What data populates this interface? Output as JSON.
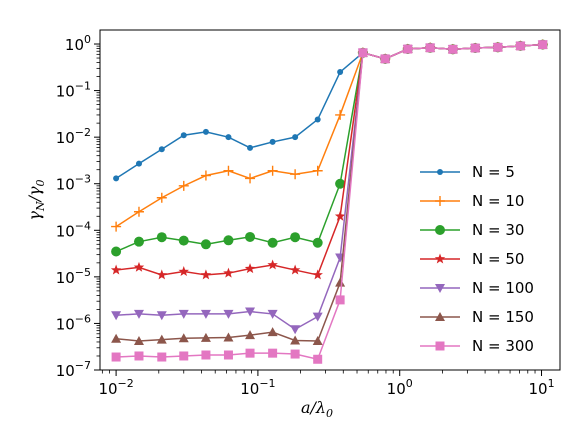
{
  "chart_data": {
    "type": "line",
    "xlabel": "a/λ0",
    "ylabel": "γN/γ0",
    "xscale": "log",
    "yscale": "log",
    "xlim": [
      0.0077,
      13.5
    ],
    "ylim": [
      1e-07,
      2.0
    ],
    "grid": false,
    "legend_position": "center-right",
    "x_ticks": [
      {
        "label": "10",
        "exp": "−2",
        "value": 0.01
      },
      {
        "label": "10",
        "exp": "−1",
        "value": 0.1
      },
      {
        "label": "10",
        "exp": "0",
        "value": 1
      },
      {
        "label": "10",
        "exp": "1",
        "value": 10
      }
    ],
    "y_ticks": [
      {
        "label": "10",
        "exp": "0",
        "value": 1
      },
      {
        "label": "10",
        "exp": "−1",
        "value": 0.1
      },
      {
        "label": "10",
        "exp": "−2",
        "value": 0.01
      },
      {
        "label": "10",
        "exp": "−3",
        "value": 0.001
      },
      {
        "label": "10",
        "exp": "−4",
        "value": 0.0001
      },
      {
        "label": "10",
        "exp": "−5",
        "value": 1e-05
      },
      {
        "label": "10",
        "exp": "−6",
        "value": 1e-06
      },
      {
        "label": "10",
        "exp": "−7",
        "value": 1e-07
      }
    ],
    "x": [
      0.01,
      0.0145,
      0.021,
      0.03,
      0.043,
      0.062,
      0.088,
      0.127,
      0.183,
      0.264,
      0.38,
      0.55,
      0.79,
      1.14,
      1.64,
      2.37,
      3.41,
      4.92,
      7.1,
      10.2
    ],
    "series": [
      {
        "name": "N = 5",
        "marker": "point",
        "color": "#1f77b4",
        "values": [
          0.0013,
          0.0027,
          0.0055,
          0.011,
          0.013,
          0.01,
          0.0059,
          0.0079,
          0.01,
          0.024,
          0.25,
          0.65,
          0.48,
          0.78,
          0.83,
          0.77,
          0.82,
          0.85,
          0.91,
          0.97
        ]
      },
      {
        "name": "N = 10",
        "marker": "plus",
        "color": "#ff7f0e",
        "values": [
          0.00012,
          0.00025,
          0.0005,
          0.0009,
          0.0015,
          0.0019,
          0.0013,
          0.0019,
          0.0016,
          0.0019,
          0.03,
          0.65,
          0.48,
          0.78,
          0.83,
          0.77,
          0.82,
          0.85,
          0.91,
          0.97
        ]
      },
      {
        "name": "N = 30",
        "marker": "circle",
        "color": "#2ca02c",
        "values": [
          3.5e-05,
          5.7e-05,
          7.1e-05,
          6e-05,
          5e-05,
          6.1e-05,
          7.2e-05,
          5.4e-05,
          7.1e-05,
          5.4e-05,
          0.001,
          0.65,
          0.48,
          0.78,
          0.83,
          0.77,
          0.82,
          0.85,
          0.91,
          0.97
        ]
      },
      {
        "name": "N = 50",
        "marker": "star",
        "color": "#d62728",
        "values": [
          1.4e-05,
          1.6e-05,
          1.1e-05,
          1.3e-05,
          1.1e-05,
          1.2e-05,
          1.5e-05,
          1.8e-05,
          1.4e-05,
          1.1e-05,
          0.0002,
          0.65,
          0.48,
          0.78,
          0.83,
          0.77,
          0.82,
          0.85,
          0.91,
          0.97
        ]
      },
      {
        "name": "N = 100",
        "marker": "triangle_down",
        "color": "#9467bd",
        "values": [
          1.5e-06,
          1.6e-06,
          1.5e-06,
          1.6e-06,
          1.6e-06,
          1.6e-06,
          1.8e-06,
          1.6e-06,
          7.5e-07,
          1.4e-06,
          2.6e-05,
          0.65,
          0.48,
          0.78,
          0.83,
          0.77,
          0.82,
          0.85,
          0.91,
          0.97
        ]
      },
      {
        "name": "N = 150",
        "marker": "triangle_up",
        "color": "#8c564b",
        "values": [
          4.7e-07,
          4.2e-07,
          4.5e-07,
          4.8e-07,
          4.9e-07,
          5e-07,
          5.6e-07,
          6.5e-07,
          4.3e-07,
          4.2e-07,
          7.5e-06,
          0.65,
          0.48,
          0.78,
          0.83,
          0.77,
          0.82,
          0.85,
          0.91,
          0.97
        ]
      },
      {
        "name": "N = 300",
        "marker": "square",
        "color": "#e377c2",
        "values": [
          1.9e-07,
          2e-07,
          1.9e-07,
          2e-07,
          2.1e-07,
          2.1e-07,
          2.3e-07,
          2.3e-07,
          2.2e-07,
          1.7e-07,
          3.2e-06,
          0.65,
          0.48,
          0.78,
          0.83,
          0.77,
          0.82,
          0.85,
          0.91,
          0.97
        ]
      }
    ]
  }
}
